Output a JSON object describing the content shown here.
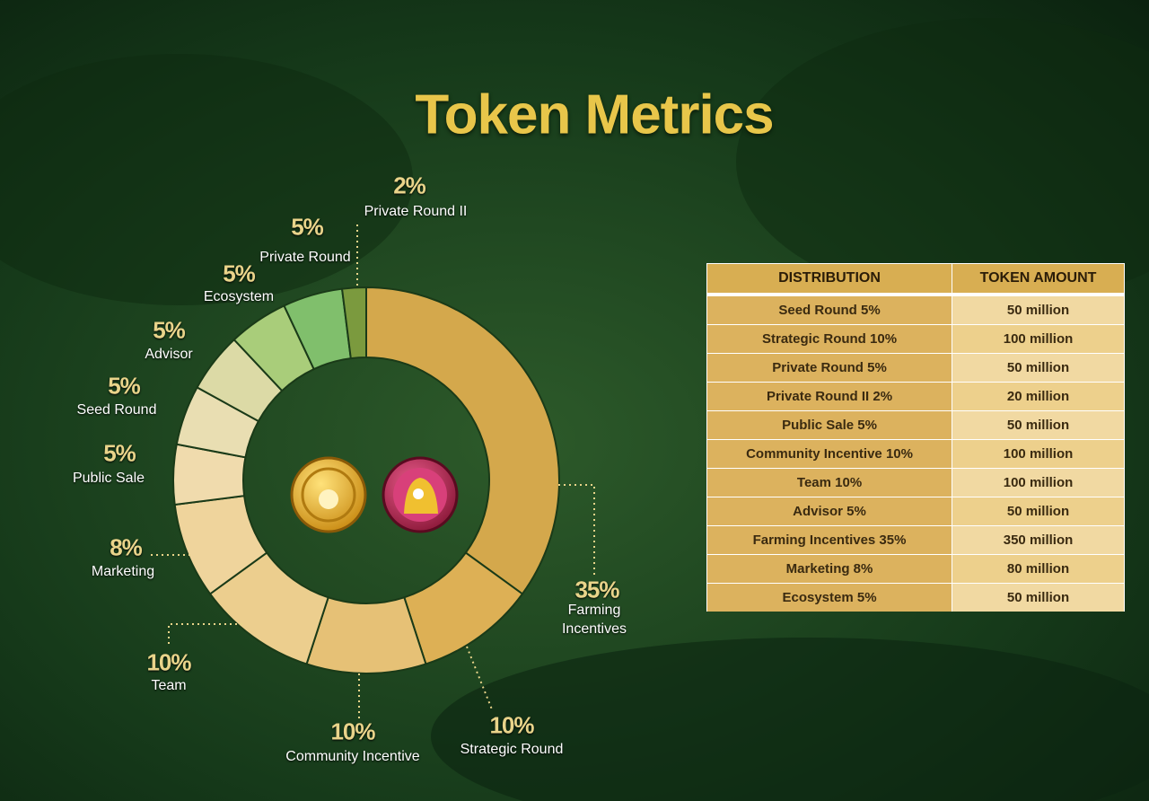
{
  "chart_data": {
    "type": "pie",
    "title": "Token Metrics",
    "categories": [
      "Farming Incentives",
      "Strategic Round",
      "Community Incentive",
      "Team",
      "Marketing",
      "Public Sale",
      "Seed Round",
      "Advisor",
      "Ecosystem",
      "Private Round",
      "Private Round II"
    ],
    "values": [
      35,
      10,
      10,
      10,
      8,
      5,
      5,
      5,
      5,
      5,
      2
    ],
    "value_labels": [
      "35%",
      "10%",
      "10%",
      "10%",
      "8%",
      "5%",
      "5%",
      "5%",
      "5%",
      "5%",
      "2%"
    ],
    "colors": [
      "#d4a84c",
      "#ddb055",
      "#e6c176",
      "#ecce8e",
      "#efd49c",
      "#f0dbad",
      "#e9deb2",
      "#dcdaa6",
      "#a9cd7a",
      "#80bf6c",
      "#7b9a3e"
    ]
  },
  "table": {
    "header": [
      "DISTRIBUTION",
      "TOKEN AMOUNT"
    ],
    "rows": [
      [
        "Seed Round 5%",
        "50 million"
      ],
      [
        "Strategic Round 10%",
        "100 million"
      ],
      [
        "Private Round 5%",
        "50 million"
      ],
      [
        "Private Round II 2%",
        "20 million"
      ],
      [
        "Public Sale 5%",
        "50 million"
      ],
      [
        "Community Incentive 10%",
        "100 million"
      ],
      [
        "Team 10%",
        "100 million"
      ],
      [
        "Advisor 5%",
        "50 million"
      ],
      [
        "Farming Incentives 35%",
        "350 million"
      ],
      [
        "Marketing 8%",
        "80 million"
      ],
      [
        "Ecosystem 5%",
        "50 million"
      ]
    ]
  }
}
